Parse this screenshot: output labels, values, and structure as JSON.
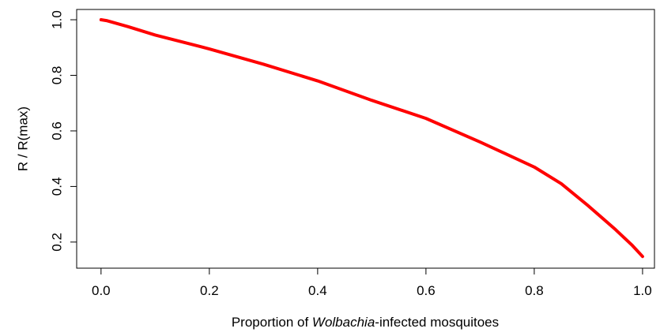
{
  "chart_data": {
    "type": "line",
    "xlabel_parts": [
      "Proportion of ",
      "Wolbachia",
      "-infected mosquitoes"
    ],
    "ylabel": "R / R(max)",
    "x": [
      0,
      0.01,
      0.05,
      0.1,
      0.2,
      0.3,
      0.4,
      0.5,
      0.6,
      0.7,
      0.8,
      0.85,
      0.9,
      0.95,
      0.98,
      1.0
    ],
    "series": [
      {
        "name": "R / R(max)",
        "color": "#ff0000",
        "values": [
          1.0,
          0.997,
          0.975,
          0.945,
          0.895,
          0.84,
          0.78,
          0.71,
          0.645,
          0.56,
          0.47,
          0.41,
          0.33,
          0.245,
          0.19,
          0.148
        ]
      }
    ],
    "xlim": [
      -0.045,
      1.022
    ],
    "ylim": [
      0.106,
      1.037
    ],
    "xticks": [
      {
        "value": 0,
        "label": "0.0"
      },
      0.2,
      0.4,
      0.6,
      0.8,
      {
        "value": 1,
        "label": "1.0"
      }
    ],
    "yticks": [
      0.2,
      0.4,
      0.6,
      0.8,
      {
        "value": 1,
        "label": "1.0"
      }
    ],
    "grid": false
  }
}
